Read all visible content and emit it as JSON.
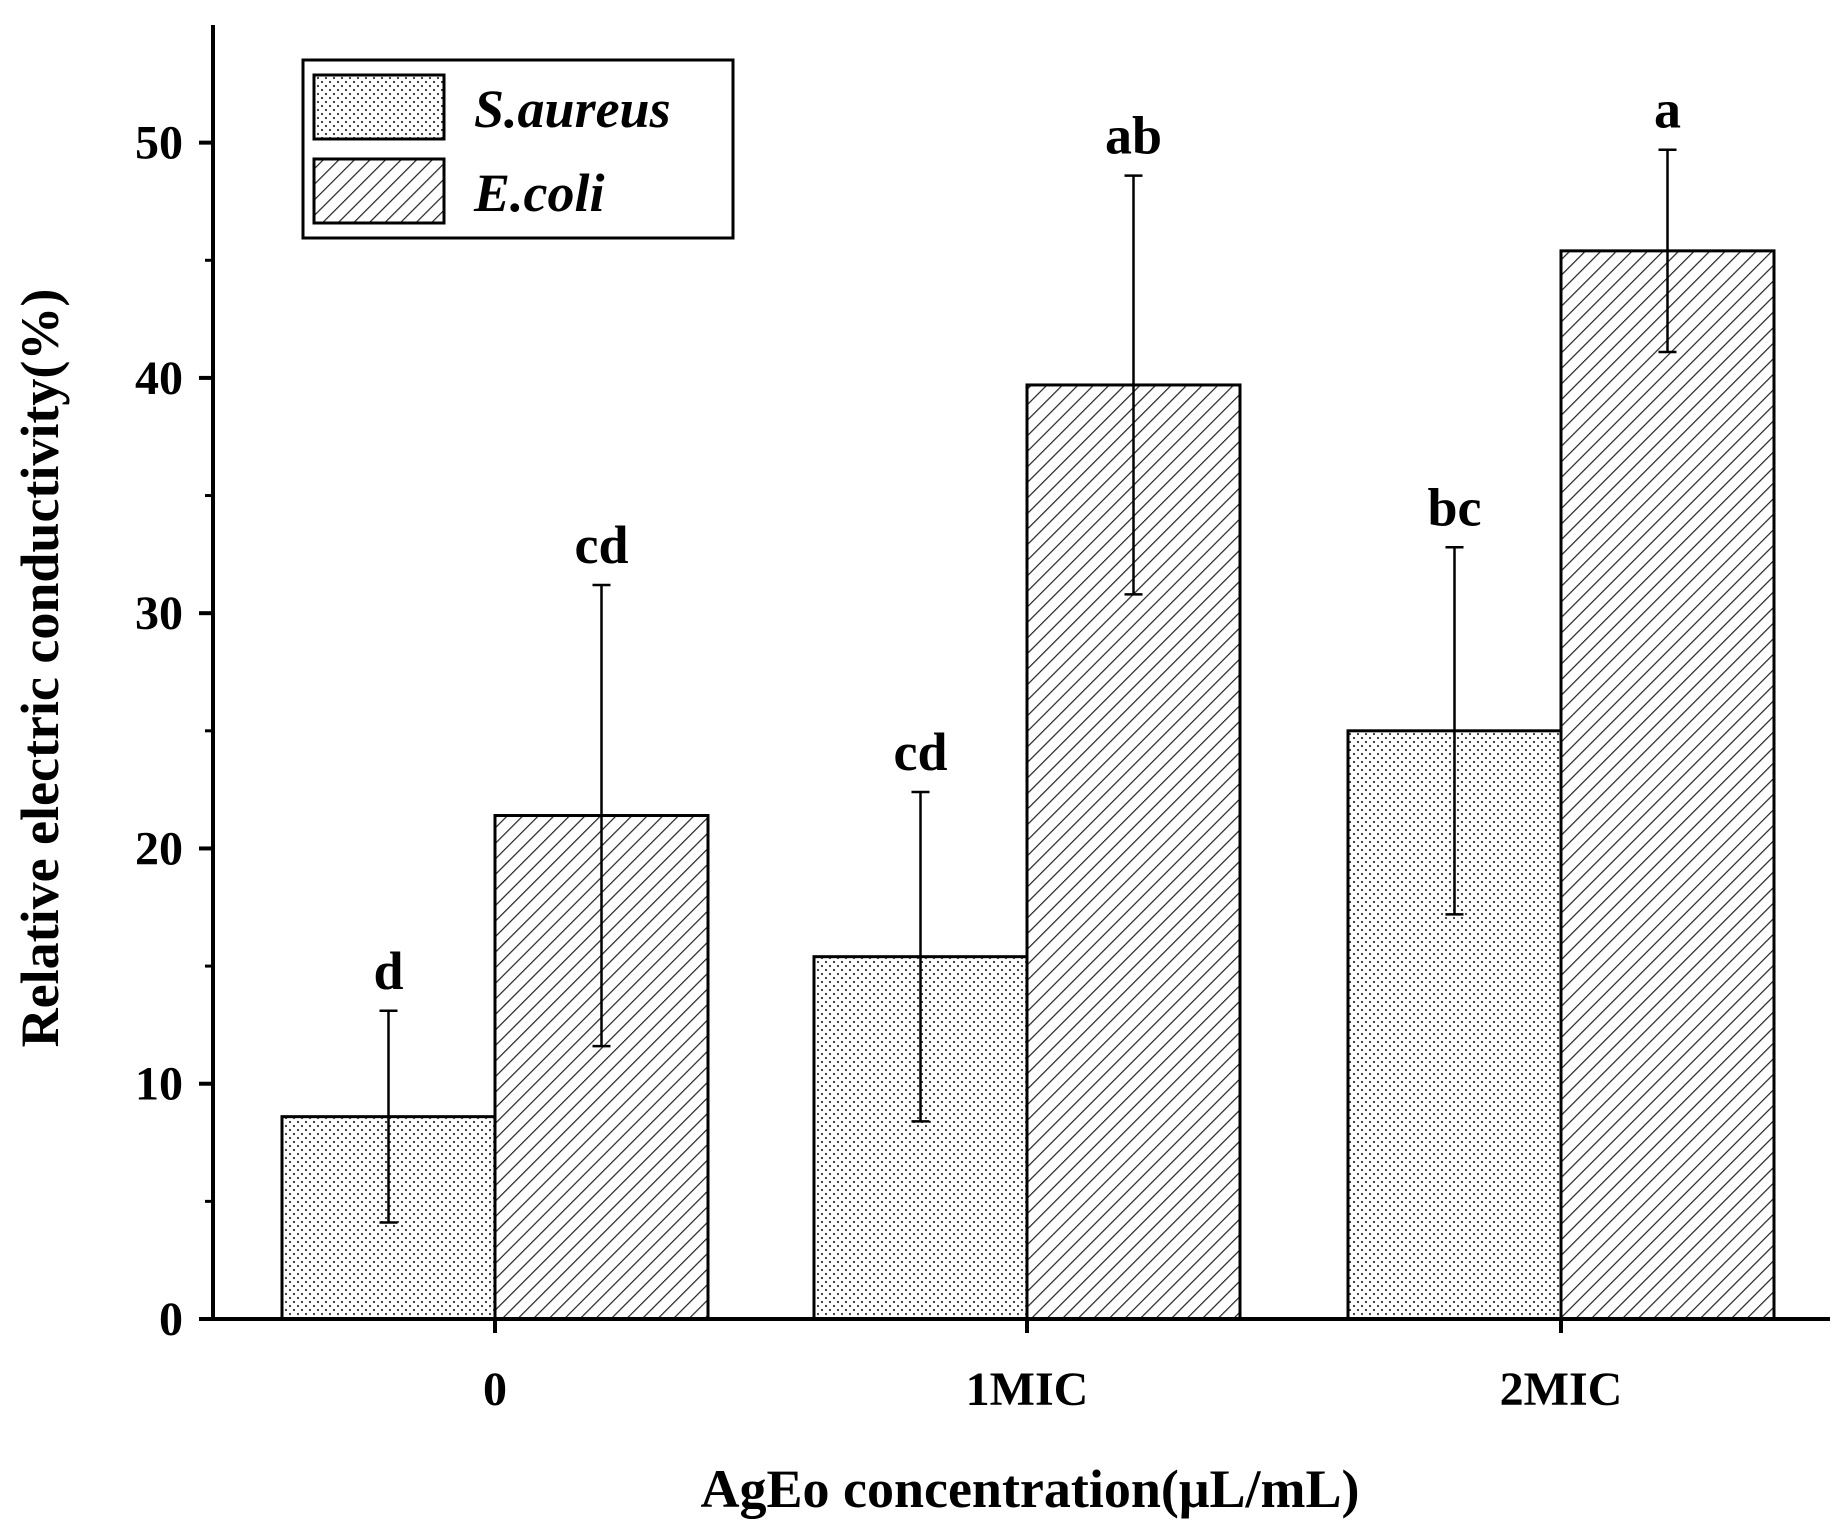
{
  "chart_data": {
    "type": "bar",
    "title": "",
    "xlabel": "AgEo concentration(μL/mL)",
    "ylabel": "Relative electric conductivity(%)",
    "ylim": [
      0,
      55
    ],
    "yticks": [
      0,
      10,
      20,
      30,
      40,
      50
    ],
    "categories": [
      "0",
      "1MIC",
      "2MIC"
    ],
    "legend_position": "top-left",
    "grid": false,
    "series": [
      {
        "name": "S.aureus",
        "pattern": "dots",
        "values": [
          8.6,
          15.4,
          25.0
        ],
        "errors": [
          4.5,
          7.0,
          7.8
        ],
        "labels": [
          "d",
          "cd",
          "bc"
        ]
      },
      {
        "name": "E.coli",
        "pattern": "hatch",
        "values": [
          21.4,
          39.7,
          45.4
        ],
        "errors": [
          9.8,
          8.9,
          4.3
        ],
        "labels": [
          "cd",
          "ab",
          "a"
        ]
      }
    ]
  }
}
